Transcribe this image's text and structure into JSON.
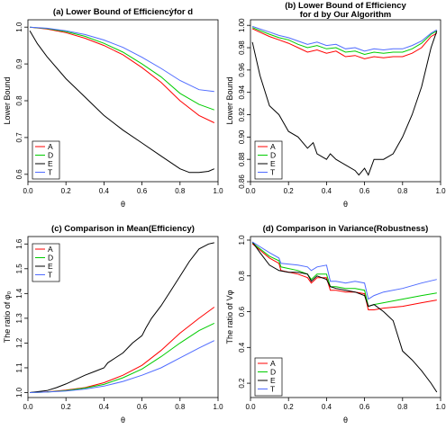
{
  "chart_data": [
    {
      "type": "line",
      "title": "(a) Lower Bound of Efficiencẏfor d",
      "subtitle": "",
      "xlabel": "θ",
      "ylabel": "Lower Bound",
      "xlim": [
        0,
        1
      ],
      "ylim": [
        0.58,
        1.02
      ],
      "xticks": [
        0.0,
        0.2,
        0.4,
        0.6,
        0.8,
        1.0
      ],
      "yticks": [
        0.6,
        0.7,
        0.8,
        0.9,
        1.0
      ],
      "grid": false,
      "legend_position": "bottom-left",
      "series": [
        {
          "name": "A",
          "color": "#ff0000",
          "x": [
            0.01,
            0.1,
            0.2,
            0.3,
            0.4,
            0.5,
            0.6,
            0.7,
            0.8,
            0.9,
            0.98
          ],
          "y": [
            1.0,
            0.995,
            0.985,
            0.97,
            0.95,
            0.925,
            0.89,
            0.85,
            0.8,
            0.76,
            0.74
          ]
        },
        {
          "name": "D",
          "color": "#00cc00",
          "x": [
            0.01,
            0.1,
            0.2,
            0.3,
            0.4,
            0.5,
            0.6,
            0.7,
            0.8,
            0.9,
            0.98
          ],
          "y": [
            1.0,
            0.996,
            0.988,
            0.975,
            0.956,
            0.932,
            0.9,
            0.865,
            0.82,
            0.79,
            0.775
          ]
        },
        {
          "name": "E",
          "color": "#000000",
          "x": [
            0.01,
            0.05,
            0.1,
            0.2,
            0.3,
            0.4,
            0.5,
            0.6,
            0.7,
            0.8,
            0.85,
            0.9,
            0.95,
            0.98
          ],
          "y": [
            0.99,
            0.955,
            0.92,
            0.86,
            0.81,
            0.76,
            0.72,
            0.685,
            0.65,
            0.615,
            0.605,
            0.605,
            0.608,
            0.615
          ]
        },
        {
          "name": "T",
          "color": "#4f6bff",
          "x": [
            0.01,
            0.1,
            0.2,
            0.3,
            0.4,
            0.5,
            0.6,
            0.7,
            0.8,
            0.9,
            0.98
          ],
          "y": [
            1.0,
            0.997,
            0.99,
            0.98,
            0.965,
            0.945,
            0.918,
            0.888,
            0.855,
            0.83,
            0.825
          ]
        }
      ]
    },
    {
      "type": "line",
      "title": "(b) Lower Bound of Efficiency",
      "subtitle": "for d by Our Algorithm",
      "xlabel": "θ",
      "ylabel": "Lower Bound",
      "xlim": [
        0,
        1
      ],
      "ylim": [
        0.86,
        1.005
      ],
      "xticks": [
        0.0,
        0.2,
        0.4,
        0.6,
        0.8,
        1.0
      ],
      "yticks": [
        0.86,
        0.88,
        0.9,
        0.92,
        0.94,
        0.96,
        0.98,
        1.0
      ],
      "grid": false,
      "legend_position": "bottom-left",
      "series": [
        {
          "name": "A",
          "color": "#ff0000",
          "x": [
            0.01,
            0.1,
            0.15,
            0.2,
            0.25,
            0.3,
            0.35,
            0.4,
            0.45,
            0.5,
            0.55,
            0.6,
            0.65,
            0.7,
            0.75,
            0.8,
            0.85,
            0.9,
            0.95,
            0.98
          ],
          "y": [
            0.997,
            0.99,
            0.987,
            0.984,
            0.98,
            0.976,
            0.978,
            0.975,
            0.977,
            0.972,
            0.973,
            0.97,
            0.972,
            0.971,
            0.972,
            0.972,
            0.975,
            0.98,
            0.99,
            0.993
          ]
        },
        {
          "name": "D",
          "color": "#00cc00",
          "x": [
            0.01,
            0.1,
            0.15,
            0.2,
            0.25,
            0.3,
            0.35,
            0.4,
            0.45,
            0.5,
            0.55,
            0.6,
            0.65,
            0.7,
            0.75,
            0.8,
            0.85,
            0.9,
            0.95,
            0.98
          ],
          "y": [
            0.998,
            0.992,
            0.989,
            0.987,
            0.983,
            0.98,
            0.982,
            0.979,
            0.98,
            0.976,
            0.977,
            0.974,
            0.976,
            0.975,
            0.976,
            0.976,
            0.979,
            0.984,
            0.992,
            0.995
          ]
        },
        {
          "name": "E",
          "color": "#000000",
          "x": [
            0.01,
            0.05,
            0.1,
            0.15,
            0.2,
            0.25,
            0.3,
            0.33,
            0.35,
            0.4,
            0.42,
            0.45,
            0.5,
            0.55,
            0.57,
            0.6,
            0.62,
            0.65,
            0.7,
            0.75,
            0.8,
            0.85,
            0.9,
            0.95,
            0.98
          ],
          "y": [
            0.985,
            0.955,
            0.928,
            0.92,
            0.905,
            0.9,
            0.89,
            0.895,
            0.885,
            0.88,
            0.885,
            0.88,
            0.875,
            0.87,
            0.866,
            0.872,
            0.866,
            0.88,
            0.88,
            0.885,
            0.9,
            0.92,
            0.945,
            0.98,
            0.995
          ]
        },
        {
          "name": "T",
          "color": "#4f6bff",
          "x": [
            0.01,
            0.1,
            0.15,
            0.2,
            0.25,
            0.3,
            0.35,
            0.4,
            0.45,
            0.5,
            0.55,
            0.6,
            0.65,
            0.7,
            0.75,
            0.8,
            0.85,
            0.9,
            0.95,
            0.98
          ],
          "y": [
            0.999,
            0.994,
            0.991,
            0.989,
            0.986,
            0.983,
            0.985,
            0.982,
            0.983,
            0.979,
            0.98,
            0.977,
            0.979,
            0.978,
            0.979,
            0.979,
            0.982,
            0.986,
            0.993,
            0.996
          ]
        }
      ]
    },
    {
      "type": "line",
      "title": "(c) Comparison in Mean(Efficiency)",
      "subtitle": "",
      "xlabel": "θ",
      "ylabel": "The ratio of φ₀",
      "xlim": [
        0,
        1
      ],
      "ylim": [
        0.98,
        1.63
      ],
      "xticks": [
        0.0,
        0.2,
        0.4,
        0.6,
        0.8,
        1.0
      ],
      "yticks": [
        1.0,
        1.1,
        1.2,
        1.3,
        1.4,
        1.5,
        1.6
      ],
      "grid": false,
      "legend_position": "top-left",
      "series": [
        {
          "name": "A",
          "color": "#ff0000",
          "x": [
            0.01,
            0.1,
            0.2,
            0.3,
            0.4,
            0.5,
            0.6,
            0.7,
            0.8,
            0.9,
            0.98
          ],
          "y": [
            1.0,
            1.003,
            1.01,
            1.02,
            1.04,
            1.07,
            1.11,
            1.17,
            1.24,
            1.3,
            1.345
          ]
        },
        {
          "name": "D",
          "color": "#00cc00",
          "x": [
            0.01,
            0.1,
            0.2,
            0.3,
            0.4,
            0.5,
            0.6,
            0.7,
            0.8,
            0.9,
            0.98
          ],
          "y": [
            1.0,
            1.002,
            1.008,
            1.018,
            1.033,
            1.06,
            1.095,
            1.145,
            1.2,
            1.25,
            1.28
          ]
        },
        {
          "name": "E",
          "color": "#000000",
          "x": [
            0.01,
            0.1,
            0.15,
            0.2,
            0.3,
            0.35,
            0.4,
            0.42,
            0.5,
            0.55,
            0.6,
            0.62,
            0.65,
            0.7,
            0.75,
            0.8,
            0.85,
            0.9,
            0.95,
            0.98
          ],
          "y": [
            1.0,
            1.008,
            1.02,
            1.035,
            1.07,
            1.085,
            1.1,
            1.12,
            1.16,
            1.2,
            1.23,
            1.26,
            1.3,
            1.35,
            1.41,
            1.47,
            1.53,
            1.58,
            1.6,
            1.605
          ]
        },
        {
          "name": "T",
          "color": "#4f6bff",
          "x": [
            0.01,
            0.1,
            0.2,
            0.3,
            0.4,
            0.5,
            0.6,
            0.7,
            0.8,
            0.9,
            0.98
          ],
          "y": [
            1.0,
            1.002,
            1.006,
            1.014,
            1.026,
            1.045,
            1.07,
            1.1,
            1.14,
            1.18,
            1.21
          ]
        }
      ]
    },
    {
      "type": "line",
      "title": "(d) Comparison in Variance(Robustness)",
      "subtitle": "",
      "xlabel": "θ",
      "ylabel": "The ratio of Vφ",
      "xlim": [
        0,
        1
      ],
      "ylim": [
        0.12,
        1.02
      ],
      "xticks": [
        0.0,
        0.2,
        0.4,
        0.6,
        0.8,
        1.0
      ],
      "yticks": [
        0.2,
        0.4,
        0.6,
        0.8,
        1.0
      ],
      "grid": false,
      "legend_position": "bottom-left",
      "series": [
        {
          "name": "A",
          "color": "#ff0000",
          "x": [
            0.01,
            0.1,
            0.15,
            0.16,
            0.25,
            0.3,
            0.32,
            0.35,
            0.4,
            0.42,
            0.45,
            0.5,
            0.55,
            0.6,
            0.62,
            0.65,
            0.7,
            0.8,
            0.9,
            0.98
          ],
          "y": [
            0.98,
            0.9,
            0.87,
            0.83,
            0.81,
            0.79,
            0.76,
            0.79,
            0.79,
            0.72,
            0.72,
            0.71,
            0.71,
            0.7,
            0.61,
            0.61,
            0.62,
            0.63,
            0.65,
            0.665
          ]
        },
        {
          "name": "D",
          "color": "#00cc00",
          "x": [
            0.01,
            0.1,
            0.15,
            0.16,
            0.25,
            0.3,
            0.32,
            0.35,
            0.4,
            0.42,
            0.45,
            0.5,
            0.55,
            0.6,
            0.62,
            0.65,
            0.7,
            0.8,
            0.9,
            0.98
          ],
          "y": [
            0.985,
            0.91,
            0.885,
            0.85,
            0.83,
            0.81,
            0.78,
            0.81,
            0.81,
            0.74,
            0.74,
            0.73,
            0.73,
            0.72,
            0.63,
            0.64,
            0.65,
            0.67,
            0.69,
            0.705
          ]
        },
        {
          "name": "E",
          "color": "#000000",
          "x": [
            0.01,
            0.05,
            0.1,
            0.15,
            0.2,
            0.25,
            0.3,
            0.32,
            0.35,
            0.4,
            0.42,
            0.45,
            0.5,
            0.55,
            0.6,
            0.62,
            0.65,
            0.7,
            0.75,
            0.8,
            0.85,
            0.9,
            0.95,
            0.98
          ],
          "y": [
            0.99,
            0.93,
            0.86,
            0.83,
            0.82,
            0.82,
            0.81,
            0.77,
            0.8,
            0.78,
            0.74,
            0.73,
            0.72,
            0.71,
            0.69,
            0.63,
            0.64,
            0.6,
            0.55,
            0.38,
            0.33,
            0.27,
            0.2,
            0.15
          ]
        },
        {
          "name": "T",
          "color": "#4f6bff",
          "x": [
            0.01,
            0.1,
            0.15,
            0.16,
            0.25,
            0.3,
            0.32,
            0.35,
            0.4,
            0.42,
            0.45,
            0.5,
            0.55,
            0.6,
            0.62,
            0.65,
            0.7,
            0.8,
            0.9,
            0.98
          ],
          "y": [
            0.99,
            0.93,
            0.9,
            0.87,
            0.86,
            0.85,
            0.83,
            0.85,
            0.86,
            0.77,
            0.77,
            0.76,
            0.77,
            0.76,
            0.67,
            0.69,
            0.71,
            0.73,
            0.76,
            0.78
          ]
        }
      ]
    }
  ]
}
